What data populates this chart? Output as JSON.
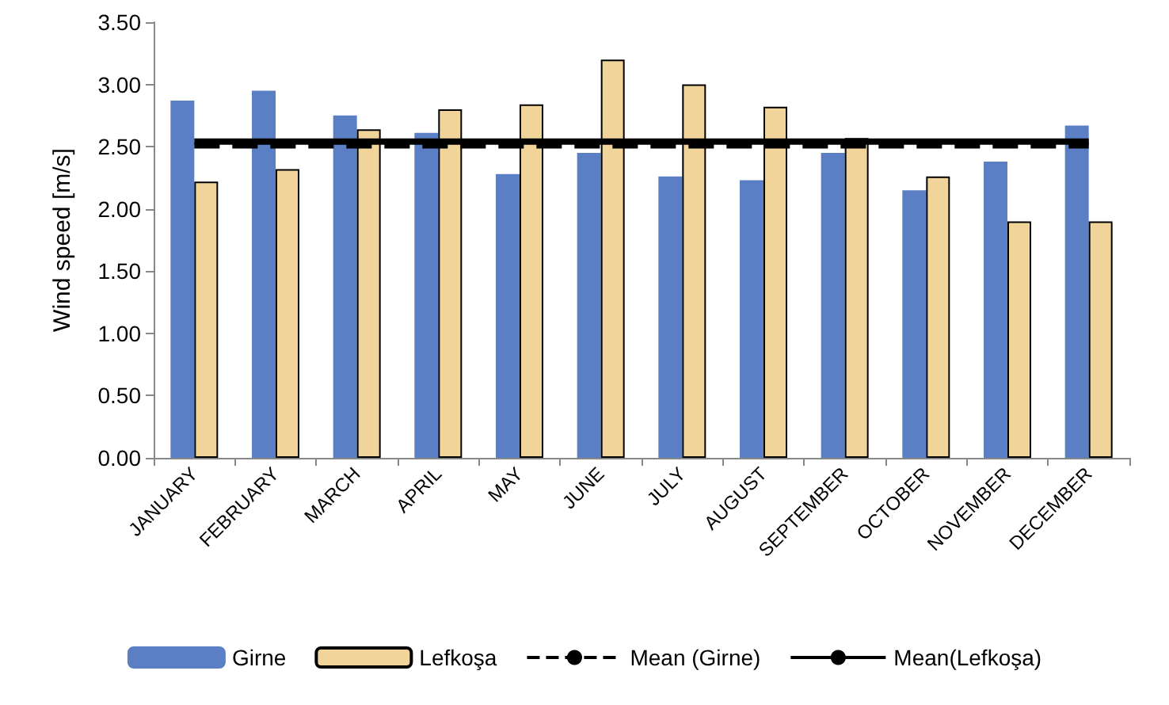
{
  "chart_data": {
    "type": "bar",
    "ylabel": "Wind speed [m/s]",
    "categories": [
      "JANUARY",
      "FEBRUARY",
      "MARCH",
      "APRIL",
      "MAY",
      "JUNE",
      "JULY",
      "AUGUST",
      "SEPTEMBER",
      "OCTOBER",
      "NOVEMBER",
      "DECEMBER"
    ],
    "series": [
      {
        "name": "Girne",
        "color": "#5b7fc4",
        "values": [
          2.87,
          2.95,
          2.75,
          2.61,
          2.28,
          2.45,
          2.26,
          2.23,
          2.45,
          2.15,
          2.38,
          2.67
        ]
      },
      {
        "name": "Lefkoşa",
        "color": "#f0d49a",
        "values": [
          2.22,
          2.32,
          2.64,
          2.8,
          2.84,
          3.2,
          3.0,
          2.82,
          2.57,
          2.26,
          1.9,
          1.9
        ]
      },
      {
        "name": "Mean (Girne)",
        "type": "line",
        "color": "#000000",
        "line_style": "dashed",
        "values": [
          2.51,
          2.51,
          2.51,
          2.51,
          2.51,
          2.51,
          2.51,
          2.51,
          2.51,
          2.51,
          2.51,
          2.51
        ]
      },
      {
        "name": "Mean(Lefkoşa)",
        "type": "line",
        "color": "#000000",
        "line_style": "solid",
        "values": [
          2.54,
          2.54,
          2.54,
          2.54,
          2.54,
          2.54,
          2.54,
          2.54,
          2.54,
          2.54,
          2.54,
          2.54
        ]
      }
    ],
    "ylim": [
      0,
      3.5
    ],
    "yticks": [
      {
        "value": 0,
        "label": "0.00"
      },
      {
        "value": 0.5,
        "label": "0.50"
      },
      {
        "value": 1,
        "label": "1.00"
      },
      {
        "value": 1.5,
        "label": "1.50"
      },
      {
        "value": 2,
        "label": "2.00"
      },
      {
        "value": 2.5,
        "label": "2.50"
      },
      {
        "value": 3,
        "label": "3.00"
      },
      {
        "value": 3.5,
        "label": "3.50"
      }
    ],
    "grid": false,
    "legend": "bottom",
    "marker": "none"
  }
}
